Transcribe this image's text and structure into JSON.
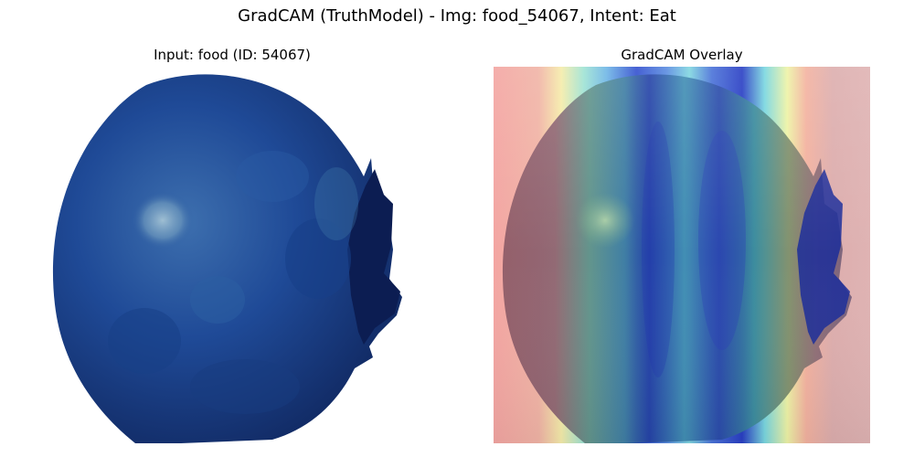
{
  "figure": {
    "suptitle": "GradCAM (TruthModel) - Img: food_54067, Intent: Eat"
  },
  "panels": [
    {
      "title": "Input: food (ID: 54067)",
      "kind": "input-image"
    },
    {
      "title": "GradCAM Overlay",
      "kind": "gradcam-overlay",
      "colormap": "jet"
    }
  ],
  "colors": {
    "background": "#ffffff",
    "fruit_dark": "#142f72",
    "fruit_mid": "#1f4a97",
    "fruit_highlight": "#7fa9c6",
    "heat_low_red": "#f1a0a0",
    "heat_mid_yellow": "#f5f0a8",
    "heat_cyan": "#4cc8d8",
    "heat_high_blue": "#2a48c8"
  }
}
